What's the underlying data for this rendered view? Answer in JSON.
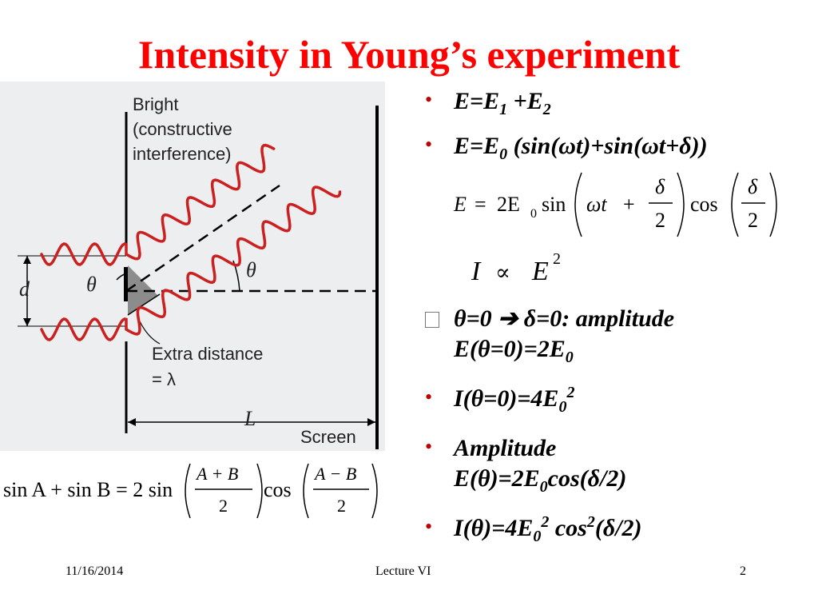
{
  "slide": {
    "title": "Intensity in Young’s experiment"
  },
  "figure": {
    "label_bright": [
      "Bright",
      "(constructive",
      "interference)"
    ],
    "label_theta_left": "θ",
    "label_theta_right": "θ",
    "label_d": "d",
    "label_extra": [
      "Extra distance",
      "= λ"
    ],
    "label_L": "L",
    "label_screen": "Screen"
  },
  "trig_identity": {
    "lhs": "sin A + sin B = 2 sin",
    "frac1_num": "A + B",
    "frac1_den": "2",
    "cos": "cos",
    "frac2_num": "A − B",
    "frac2_den": "2"
  },
  "bullets": {
    "b1": {
      "E": "E=E",
      "s1": "1",
      "plus": " +E",
      "s2": "2"
    },
    "b2": {
      "a": "E=E",
      "s0": "0",
      "b": " (sin(ωt)+sin(ωt+δ))"
    },
    "eq1": {
      "E": "E",
      "eq": "=",
      "two": "2E",
      "sub0": "0",
      "sin": "sin",
      "wt": "ωt",
      "plus": "+",
      "num1": "δ",
      "den1": "2",
      "cos": "cos",
      "num2": "δ",
      "den2": "2"
    },
    "eq2": {
      "I": "I",
      "prop": "∝",
      "E": "E",
      "sq": "2"
    },
    "b3": {
      "line1": "θ=0 ➔ δ=0: amplitude",
      "line2a": "E(θ=0)=2E",
      "line2s": "0"
    },
    "b4": {
      "a": "I(θ=0)=4E",
      "s": "0",
      "p": "2"
    },
    "b5": {
      "line1": "Amplitude",
      "line2a": "E(θ)=2E",
      "line2s": "0",
      "line2b": "cos(δ/2)"
    },
    "b6": {
      "a": "I(θ)=4E",
      "s": "0",
      "p": "2",
      "b": " cos",
      "p2": "2",
      "c": "(δ/2)"
    }
  },
  "footer": {
    "date": "11/16/2014",
    "center": "Lecture VI",
    "page": "2"
  },
  "colors": {
    "title": "#ff0000",
    "wave": "#cc1f1f",
    "bullet": "#c00000",
    "figure_bg": "#eceeef"
  }
}
